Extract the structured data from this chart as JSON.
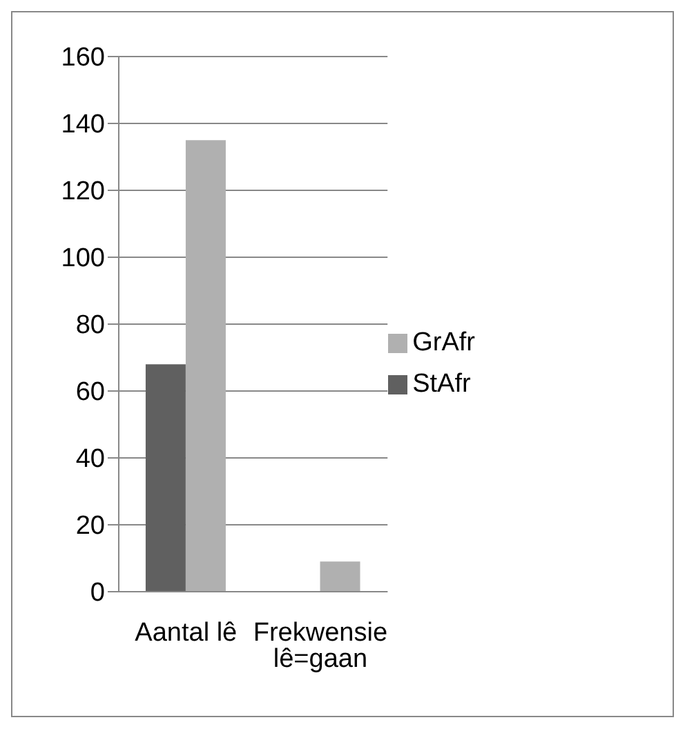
{
  "chart_data": {
    "type": "bar",
    "categories": [
      "Aantal lê",
      "Frekwensie lê=gaan"
    ],
    "series": [
      {
        "name": "StAfr",
        "color": "#606060",
        "values": [
          68,
          0
        ]
      },
      {
        "name": "GrAfr",
        "color": "#b0b0b0",
        "values": [
          135,
          9
        ]
      }
    ],
    "ylim": [
      0,
      160
    ],
    "yticks": [
      0,
      20,
      40,
      60,
      80,
      100,
      120,
      140,
      160
    ],
    "grid": "y",
    "legend": "right"
  }
}
